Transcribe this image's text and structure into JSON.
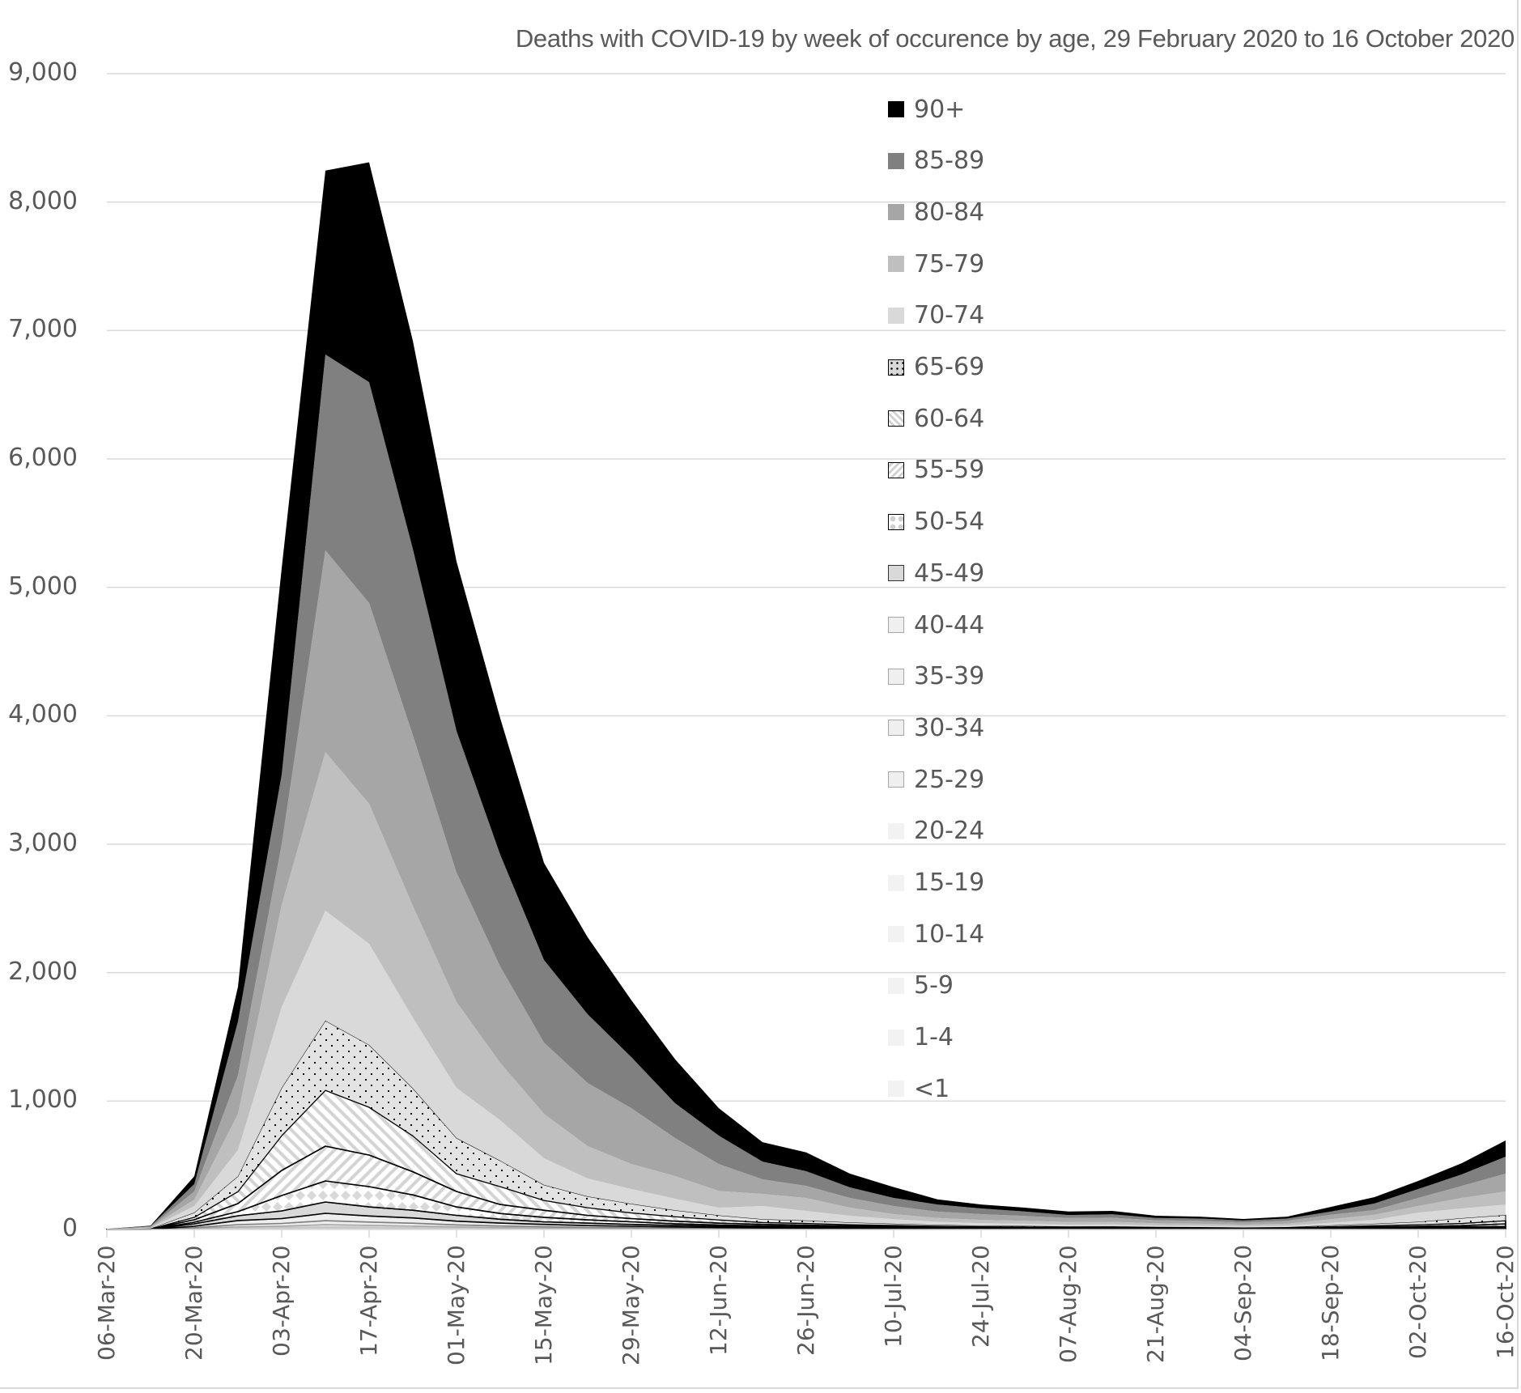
{
  "chart_data": {
    "type": "area",
    "stacked": true,
    "title": "Deaths with COVID-19 by week of occurence by age, 29 February 2020 to 16 October 2020",
    "xlabel": "",
    "ylabel": "",
    "ylim": [
      0,
      9000
    ],
    "yticks": [
      0,
      1000,
      2000,
      3000,
      4000,
      5000,
      6000,
      7000,
      8000,
      9000
    ],
    "ytick_labels": [
      "0",
      "1,000",
      "2,000",
      "3,000",
      "4,000",
      "5,000",
      "6,000",
      "7,000",
      "8,000",
      "9,000"
    ],
    "grid": true,
    "legend_position": "inside-center",
    "x": [
      "06-Mar-20",
      "13-Mar-20",
      "20-Mar-20",
      "27-Mar-20",
      "03-Apr-20",
      "10-Apr-20",
      "17-Apr-20",
      "24-Apr-20",
      "01-May-20",
      "08-May-20",
      "15-May-20",
      "22-May-20",
      "29-May-20",
      "05-Jun-20",
      "12-Jun-20",
      "19-Jun-20",
      "26-Jun-20",
      "03-Jul-20",
      "10-Jul-20",
      "17-Jul-20",
      "24-Jul-20",
      "31-Jul-20",
      "07-Aug-20",
      "14-Aug-20",
      "21-Aug-20",
      "28-Aug-20",
      "04-Sep-20",
      "11-Sep-20",
      "18-Sep-20",
      "25-Sep-20",
      "02-Oct-20",
      "09-Oct-20",
      "16-Oct-20"
    ],
    "xtick_labels": [
      "06-Mar-20",
      "20-Mar-20",
      "03-Apr-20",
      "17-Apr-20",
      "01-May-20",
      "15-May-20",
      "29-May-20",
      "12-Jun-20",
      "26-Jun-20",
      "10-Jul-20",
      "24-Jul-20",
      "07-Aug-20",
      "21-Aug-20",
      "04-Sep-20",
      "18-Sep-20",
      "02-Oct-20",
      "16-Oct-20"
    ],
    "series": [
      {
        "name": "<1",
        "fill": "#f2f2f2",
        "pattern": "solid",
        "values": [
          0,
          0,
          0,
          0,
          0,
          0,
          0,
          0,
          0,
          0,
          0,
          0,
          0,
          0,
          0,
          0,
          0,
          0,
          0,
          0,
          0,
          0,
          0,
          0,
          0,
          0,
          0,
          0,
          0,
          0,
          0,
          0,
          0
        ]
      },
      {
        "name": "1-4",
        "fill": "#f2f2f2",
        "pattern": "solid",
        "values": [
          0,
          1,
          1,
          0,
          1,
          0,
          1,
          0,
          1,
          0,
          0,
          0,
          0,
          0,
          0,
          0,
          0,
          0,
          0,
          0,
          0,
          0,
          0,
          0,
          0,
          0,
          0,
          0,
          0,
          0,
          0,
          0,
          0
        ]
      },
      {
        "name": "5-9",
        "fill": "#f2f2f2",
        "pattern": "solid",
        "values": [
          0,
          0,
          0,
          0,
          0,
          1,
          1,
          0,
          0,
          0,
          0,
          0,
          0,
          0,
          0,
          0,
          0,
          0,
          0,
          0,
          0,
          0,
          0,
          0,
          0,
          0,
          0,
          0,
          0,
          0,
          0,
          0,
          0
        ]
      },
      {
        "name": "10-14",
        "fill": "#f2f2f2",
        "pattern": "solid",
        "values": [
          0,
          0,
          0,
          1,
          1,
          1,
          1,
          1,
          1,
          1,
          1,
          0,
          1,
          0,
          0,
          0,
          0,
          0,
          0,
          0,
          0,
          0,
          0,
          0,
          0,
          0,
          0,
          0,
          0,
          0,
          0,
          0,
          0
        ]
      },
      {
        "name": "15-19",
        "fill": "#f2f2f2",
        "pattern": "solid",
        "values": [
          0,
          0,
          1,
          1,
          2,
          3,
          2,
          2,
          2,
          1,
          1,
          1,
          1,
          0,
          1,
          0,
          0,
          0,
          0,
          0,
          0,
          0,
          0,
          0,
          0,
          0,
          0,
          0,
          0,
          0,
          0,
          0,
          0
        ]
      },
      {
        "name": "20-24",
        "fill": "#f2f2f2",
        "pattern": "solid",
        "values": [
          0,
          0,
          1,
          3,
          4,
          6,
          5,
          4,
          3,
          2,
          2,
          1,
          1,
          1,
          0,
          1,
          0,
          0,
          0,
          0,
          0,
          0,
          0,
          0,
          0,
          0,
          0,
          0,
          0,
          0,
          0,
          0,
          0
        ]
      },
      {
        "name": "25-29",
        "fill": "#f0f0f0",
        "pattern": "outline-light",
        "values": [
          0,
          0,
          2,
          6,
          7,
          10,
          8,
          7,
          5,
          4,
          3,
          2,
          2,
          2,
          1,
          1,
          1,
          1,
          1,
          0,
          1,
          1,
          0,
          0,
          0,
          0,
          0,
          0,
          0,
          1,
          0,
          1,
          1
        ]
      },
      {
        "name": "30-34",
        "fill": "#efefef",
        "pattern": "outline-light",
        "values": [
          0,
          0,
          3,
          9,
          11,
          16,
          14,
          12,
          8,
          6,
          5,
          4,
          3,
          3,
          2,
          2,
          1,
          1,
          1,
          1,
          1,
          1,
          1,
          1,
          1,
          1,
          1,
          1,
          1,
          1,
          1,
          1,
          1
        ]
      },
      {
        "name": "35-39",
        "fill": "#ededed",
        "pattern": "outline-mid",
        "values": [
          0,
          0,
          6,
          18,
          21,
          32,
          26,
          23,
          16,
          13,
          10,
          8,
          6,
          5,
          4,
          3,
          3,
          2,
          2,
          2,
          1,
          1,
          1,
          1,
          1,
          1,
          1,
          1,
          1,
          1,
          2,
          2,
          2
        ]
      },
      {
        "name": "40-44",
        "fill": "#eeeeee",
        "pattern": "outline-gray",
        "values": [
          0,
          0,
          11,
          32,
          38,
          57,
          47,
          41,
          29,
          23,
          18,
          14,
          11,
          9,
          7,
          5,
          5,
          4,
          3,
          3,
          2,
          2,
          2,
          2,
          1,
          1,
          1,
          1,
          2,
          2,
          3,
          3,
          4
        ]
      },
      {
        "name": "45-49",
        "fill": "#d9d9d9",
        "pattern": "outline-black",
        "values": [
          0,
          0,
          19,
          37,
          60,
          88,
          71,
          60,
          45,
          30,
          20,
          20,
          15,
          12,
          10,
          8,
          7,
          6,
          5,
          4,
          4,
          3,
          3,
          3,
          3,
          2,
          2,
          2,
          3,
          4,
          5,
          6,
          7
        ]
      },
      {
        "name": "50-54",
        "fill": "#ffffff",
        "pattern": "diamond",
        "values": [
          1,
          1,
          13,
          32,
          120,
          164,
          158,
          120,
          66,
          45,
          35,
          25,
          20,
          13,
          10,
          8,
          7,
          6,
          5,
          4,
          3,
          3,
          3,
          3,
          2,
          2,
          2,
          3,
          4,
          5,
          6,
          7,
          9
        ]
      },
      {
        "name": "55-59",
        "fill": "#ffffff",
        "pattern": "stripe-up",
        "values": [
          0,
          1,
          19,
          63,
          195,
          271,
          246,
          180,
          120,
          70,
          55,
          35,
          25,
          20,
          15,
          12,
          10,
          8,
          6,
          5,
          4,
          4,
          3,
          3,
          3,
          3,
          2,
          2,
          4,
          6,
          8,
          10,
          20
        ]
      },
      {
        "name": "60-64",
        "fill": "#ffffff",
        "pattern": "stripe-down",
        "values": [
          0,
          2,
          19,
          94,
          271,
          435,
          372,
          280,
          139,
          139,
          77,
          60,
          45,
          35,
          25,
          15,
          14,
          10,
          9,
          7,
          6,
          5,
          5,
          5,
          4,
          4,
          3,
          4,
          7,
          10,
          13,
          18,
          25
        ]
      },
      {
        "name": "65-69",
        "fill": "#d9d9d9",
        "pattern": "dots",
        "values": [
          1,
          3,
          37,
          119,
          372,
          542,
          485,
          370,
          277,
          202,
          120,
          88,
          70,
          50,
          35,
          25,
          22,
          17,
          13,
          10,
          8,
          8,
          6,
          7,
          5,
          5,
          4,
          5,
          10,
          15,
          22,
          40,
          44
        ]
      },
      {
        "name": "70-74",
        "fill": "#d9d9d9",
        "pattern": "solid",
        "values": [
          1,
          4,
          51,
          205,
          630,
          857,
          788,
          550,
          391,
          315,
          208,
          139,
          115,
          90,
          60,
          103,
          75,
          52,
          35,
          24,
          20,
          17,
          14,
          15,
          12,
          11,
          9,
          11,
          20,
          30,
          72,
          76,
          82
        ]
      },
      {
        "name": "75-79",
        "fill": "#bfbfbf",
        "pattern": "solid",
        "values": [
          0,
          4,
          50,
          280,
          794,
          1235,
          1090,
          870,
          668,
          447,
          346,
          252,
          195,
          176,
          130,
          94,
          101,
          63,
          40,
          30,
          25,
          23,
          20,
          20,
          16,
          15,
          12,
          15,
          28,
          40,
          51,
          82,
          101
        ]
      },
      {
        "name": "80-84",
        "fill": "#a6a6a6",
        "pattern": "solid",
        "values": [
          1,
          5,
          63,
          300,
          473,
          1570,
          1563,
          1330,
          1008,
          750,
          555,
          492,
          435,
          296,
          210,
          114,
          94,
          76,
          63,
          49,
          45,
          37,
          32,
          32,
          24,
          23,
          18,
          23,
          35,
          36,
          63,
          94,
          139
        ]
      },
      {
        "name": "85-89",
        "fill": "#808080",
        "pattern": "solid",
        "values": [
          0,
          5,
          57,
          420,
          542,
          1525,
          1720,
          1450,
          1103,
          870,
          643,
          535,
          397,
          271,
          221,
          138,
          114,
          82,
          63,
          56,
          44,
          35,
          23,
          26,
          18,
          17,
          15,
          17,
          24,
          51,
          69,
          89,
          132
        ]
      },
      {
        "name": "90+",
        "fill": "#000000",
        "pattern": "solid",
        "values": [
          1,
          4,
          62,
          270,
          1608,
          1432,
          1712,
          1620,
          1318,
          1062,
          756,
          599,
          443,
          342,
          214,
          151,
          146,
          107,
          84,
          40,
          31,
          30,
          27,
          27,
          17,
          15,
          12,
          15,
          37,
          50,
          63,
          88,
          126
        ]
      }
    ]
  },
  "legend": {
    "items": [
      {
        "label": "90+",
        "swatch": "solid-black"
      },
      {
        "label": "85-89",
        "swatch": "solid-dark-gray"
      },
      {
        "label": "80-84",
        "swatch": "solid-gray"
      },
      {
        "label": "75-79",
        "swatch": "solid-light-gray"
      },
      {
        "label": "70-74",
        "swatch": "solid-lighter-gray"
      },
      {
        "label": "65-69",
        "swatch": "dotted"
      },
      {
        "label": "60-64",
        "swatch": "stripe-down"
      },
      {
        "label": "55-59",
        "swatch": "stripe-up"
      },
      {
        "label": "50-54",
        "swatch": "diamond"
      },
      {
        "label": "45-49",
        "swatch": "outlined-gray"
      },
      {
        "label": "40-44",
        "swatch": "outlined-light"
      },
      {
        "label": "35-39",
        "swatch": "outlined-light"
      },
      {
        "label": "30-34",
        "swatch": "outlined-light"
      },
      {
        "label": "25-29",
        "swatch": "outlined-light"
      },
      {
        "label": "20-24",
        "swatch": "solid-faint"
      },
      {
        "label": "15-19",
        "swatch": "solid-faint"
      },
      {
        "label": "10-14",
        "swatch": "solid-faint"
      },
      {
        "label": "5-9",
        "swatch": "solid-faint"
      },
      {
        "label": "1-4",
        "swatch": "solid-faint"
      },
      {
        "label": "<1",
        "swatch": "solid-faint"
      }
    ]
  },
  "colors": {
    "text": "#595959",
    "grid": "#d9d9d9",
    "axis": "#d9d9d9"
  }
}
